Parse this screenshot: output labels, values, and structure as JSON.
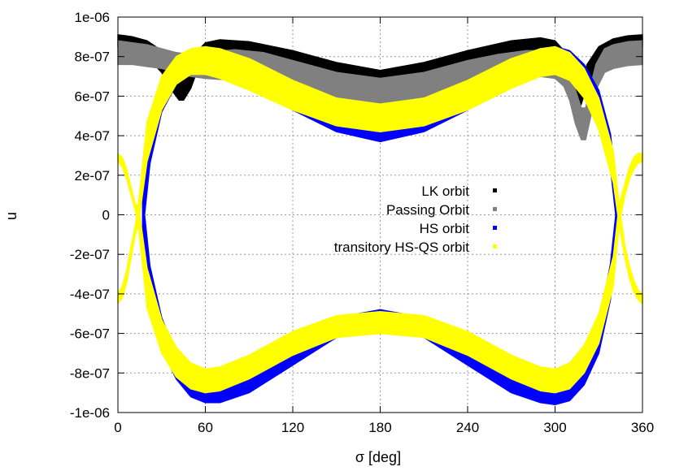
{
  "chart_data": {
    "type": "scatter",
    "title": "",
    "xlabel": "σ [deg]",
    "ylabel": "u",
    "xlim": [
      0,
      360
    ],
    "ylim": [
      -1e-06,
      1e-06
    ],
    "grid": true,
    "legend_placement": "center",
    "x_ticks": [
      0,
      60,
      120,
      180,
      240,
      300,
      360
    ],
    "x_tick_labels": [
      "0",
      "60",
      "120",
      "180",
      "240",
      "300",
      "360"
    ],
    "y_ticks": [
      -1e-06,
      -8e-07,
      -6e-07,
      -4e-07,
      -2e-07,
      0,
      2e-07,
      4e-07,
      6e-07,
      8e-07,
      1e-06
    ],
    "y_tick_labels": [
      "-1e-06",
      "-8e-07",
      "-6e-07",
      "-4e-07",
      "-2e-07",
      "0",
      "2e-07",
      "4e-07",
      "6e-07",
      "8e-07",
      "1e-06"
    ],
    "series": [
      {
        "name": "LK orbit",
        "color": "#000000",
        "bands": [
          {
            "x": [
              0,
              10,
              20,
              30,
              38,
              42,
              45,
              50,
              55,
              60,
              70,
              90,
              120,
              150,
              180,
              210,
              240,
              270,
              290,
              300,
              306,
              310,
              314,
              316,
              318,
              322,
              330,
              340,
              350,
              360
            ],
            "y_low": [
              8.5e-07,
              8.3e-07,
              8e-07,
              7.2e-07,
              6.2e-07,
              5.8e-07,
              5.8e-07,
              6.4e-07,
              7.4e-07,
              7.8e-07,
              8.1e-07,
              8e-07,
              7.6e-07,
              7.1e-07,
              6.7e-07,
              7.1e-07,
              7.7e-07,
              8.2e-07,
              8.3e-07,
              8.1e-07,
              7.6e-07,
              6.8e-07,
              5.6e-07,
              5.3e-07,
              5.6e-07,
              6.6e-07,
              7.5e-07,
              8e-07,
              8.4e-07,
              8.5e-07
            ],
            "y_high": [
              9.1e-07,
              9e-07,
              8.8e-07,
              8.3e-07,
              7.4e-07,
              6.8e-07,
              6.8e-07,
              7.5e-07,
              8.3e-07,
              8.7e-07,
              8.85e-07,
              8.75e-07,
              8.3e-07,
              7.7e-07,
              7.3e-07,
              7.7e-07,
              8.3e-07,
              8.8e-07,
              8.95e-07,
              8.8e-07,
              8.3e-07,
              7.6e-07,
              6.6e-07,
              6.3e-07,
              6.6e-07,
              7.6e-07,
              8.5e-07,
              8.9e-07,
              9.05e-07,
              9.1e-07
            ]
          }
        ]
      },
      {
        "name": "Passing Orbit",
        "color": "#808080",
        "bands": [
          {
            "x": [
              0,
              10,
              20,
              30,
              40,
              50,
              60,
              80,
              100,
              120,
              150,
              180,
              210,
              240,
              260,
              280,
              290,
              300,
              306,
              310,
              314,
              318,
              321,
              324,
              328,
              334,
              340,
              350,
              360
            ],
            "y_low": [
              7.6e-07,
              7.6e-07,
              7.5e-07,
              7.4e-07,
              7.2e-07,
              7e-07,
              6.9e-07,
              6.8e-07,
              6.6e-07,
              6.3e-07,
              5.8e-07,
              5.5e-07,
              5.8e-07,
              6.3e-07,
              6.6e-07,
              6.9e-07,
              7e-07,
              6.9e-07,
              6.5e-07,
              5.8e-07,
              4.6e-07,
              3.8e-07,
              3.8e-07,
              4.8e-07,
              6.3e-07,
              7.2e-07,
              7.4e-07,
              7.55e-07,
              7.6e-07
            ],
            "y_high": [
              8.8e-07,
              8.7e-07,
              8.6e-07,
              8.4e-07,
              8.2e-07,
              8.1e-07,
              8.2e-07,
              8.35e-07,
              8.2e-07,
              7.8e-07,
              7.2e-07,
              6.9e-07,
              7.2e-07,
              7.8e-07,
              8.1e-07,
              8.3e-07,
              8.3e-07,
              8.2e-07,
              7.9e-07,
              7.3e-07,
              6.3e-07,
              5.4e-07,
              5.4e-07,
              6.4e-07,
              7.6e-07,
              8.4e-07,
              8.6e-07,
              8.75e-07,
              8.8e-07
            ]
          }
        ]
      },
      {
        "name": "HS orbit",
        "color": "#0000ff",
        "bands": [
          {
            "x": [
              17,
              22,
              30,
              40,
              50,
              60,
              70,
              90,
              120,
              150,
              180,
              210,
              240,
              270,
              290,
              300,
              310,
              320,
              330,
              338,
              343
            ],
            "y_low": [
              -9e-08,
              2.6e-07,
              5.2e-07,
              6.6e-07,
              7.2e-07,
              7.3e-07,
              7.2e-07,
              6.5e-07,
              5.3e-07,
              4.2e-07,
              3.7e-07,
              4.2e-07,
              5.3e-07,
              6.6e-07,
              7.3e-07,
              7.4e-07,
              7.1e-07,
              6.3e-07,
              4.8e-07,
              2.4e-07,
              -9e-08
            ],
            "y_high": [
              9e-08,
              4.4e-07,
              6.8e-07,
              7.8e-07,
              8.2e-07,
              8.4e-07,
              8.4e-07,
              7.9e-07,
              6.6e-07,
              5.3e-07,
              4.8e-07,
              5.3e-07,
              6.6e-07,
              7.9e-07,
              8.4e-07,
              8.5e-07,
              8.3e-07,
              7.6e-07,
              6.3e-07,
              4.1e-07,
              9e-08
            ]
          },
          {
            "x": [
              17,
              22,
              30,
              40,
              50,
              60,
              70,
              90,
              120,
              150,
              180,
              210,
              240,
              270,
              290,
              300,
              310,
              320,
              330,
              338,
              343
            ],
            "y_low": [
              -9e-08,
              -4.4e-07,
              -6.8e-07,
              -8.3e-07,
              -9.2e-07,
              -9.5e-07,
              -9.5e-07,
              -9e-07,
              -7.6e-07,
              -6.2e-07,
              -5.8e-07,
              -6.2e-07,
              -7.6e-07,
              -9e-07,
              -9.5e-07,
              -9.6e-07,
              -9.4e-07,
              -8.6e-07,
              -7e-07,
              -4.3e-07,
              -9e-08
            ],
            "y_high": [
              9e-08,
              -2.6e-07,
              -5.2e-07,
              -7e-07,
              -8e-07,
              -8.5e-07,
              -8.4e-07,
              -7.8e-07,
              -6.4e-07,
              -5.2e-07,
              -4.8e-07,
              -5.2e-07,
              -6.4e-07,
              -7.8e-07,
              -8.4e-07,
              -8.5e-07,
              -8.2e-07,
              -7.4e-07,
              -5.6e-07,
              -2.5e-07,
              9e-08
            ]
          }
        ]
      },
      {
        "name": "transitory HS-QS orbit",
        "color": "#ffff00",
        "bands": [
          {
            "x": [
              14,
              20,
              30,
              40,
              50,
              60,
              70,
              90,
              120,
              150,
              180,
              210,
              240,
              270,
              290,
              300,
              310,
              320,
              330,
              340,
              344
            ],
            "y_low": [
              -5e-08,
              2.7e-07,
              5.3e-07,
              6.6e-07,
              7.1e-07,
              7.1e-07,
              6.9e-07,
              6.3e-07,
              5.3e-07,
              4.5e-07,
              4.2e-07,
              4.5e-07,
              5.3e-07,
              6.4e-07,
              7e-07,
              7.1e-07,
              6.8e-07,
              5.9e-07,
              4.3e-07,
              1.6e-07,
              -5e-08
            ],
            "y_high": [
              5e-08,
              4.7e-07,
              7e-07,
              8e-07,
              8.4e-07,
              8.5e-07,
              8.4e-07,
              7.9e-07,
              6.8e-07,
              5.9e-07,
              5.6e-07,
              5.9e-07,
              6.8e-07,
              7.9e-07,
              8.4e-07,
              8.5e-07,
              8.2e-07,
              7.4e-07,
              5.9e-07,
              3.2e-07,
              5e-08
            ]
          },
          {
            "x": [
              14,
              20,
              30,
              40,
              50,
              60,
              70,
              90,
              120,
              150,
              180,
              210,
              240,
              270,
              290,
              300,
              310,
              320,
              330,
              340,
              344
            ],
            "y_low": [
              -5e-08,
              -4.7e-07,
              -7e-07,
              -8.2e-07,
              -8.8e-07,
              -9e-07,
              -8.9e-07,
              -8.3e-07,
              -7.1e-07,
              -6.2e-07,
              -6e-07,
              -6.2e-07,
              -7.1e-07,
              -8.3e-07,
              -8.9e-07,
              -9e-07,
              -8.8e-07,
              -8e-07,
              -6.5e-07,
              -3.6e-07,
              -5e-08
            ],
            "y_high": [
              5e-08,
              -2.7e-07,
              -5.3e-07,
              -6.7e-07,
              -7.5e-07,
              -7.8e-07,
              -7.7e-07,
              -7.1e-07,
              -5.9e-07,
              -5.1e-07,
              -4.9e-07,
              -5.1e-07,
              -5.9e-07,
              -7.1e-07,
              -7.7e-07,
              -7.8e-07,
              -7.5e-07,
              -6.6e-07,
              -5e-07,
              -2.1e-07,
              5e-08
            ]
          },
          {
            "x": [
              0,
              3,
              6,
              9,
              12,
              14
            ],
            "y_low": [
              2.7e-07,
              2.4e-07,
              1.8e-07,
              1e-07,
              2e-08,
              -5e-08
            ],
            "y_high": [
              3.1e-07,
              2.9e-07,
              2.3e-07,
              1.4e-07,
              5e-08,
              5e-08
            ]
          },
          {
            "x": [
              0,
              3,
              6,
              9,
              12,
              14
            ],
            "y_low": [
              -4.5e-07,
              -4.2e-07,
              -3.4e-07,
              -2.2e-07,
              -1e-07,
              -5e-08
            ],
            "y_high": [
              -4e-07,
              -3.6e-07,
              -2.8e-07,
              -1.6e-07,
              -5e-08,
              5e-08
            ]
          },
          {
            "x": [
              344,
              348,
              351,
              354,
              357,
              360
            ],
            "y_low": [
              -5e-08,
              1e-07,
              1.8e-07,
              2.3e-07,
              2.6e-07,
              2.7e-07
            ],
            "y_high": [
              5e-08,
              1.6e-07,
              2.4e-07,
              2.9e-07,
              3.1e-07,
              3.1e-07
            ]
          },
          {
            "x": [
              344,
              348,
              351,
              354,
              357,
              360
            ],
            "y_low": [
              -5e-08,
              -2.2e-07,
              -3.2e-07,
              -3.9e-07,
              -4.3e-07,
              -4.5e-07
            ],
            "y_high": [
              5e-08,
              -1.6e-07,
              -2.6e-07,
              -3.3e-07,
              -3.8e-07,
              -4e-07
            ]
          }
        ]
      }
    ]
  }
}
